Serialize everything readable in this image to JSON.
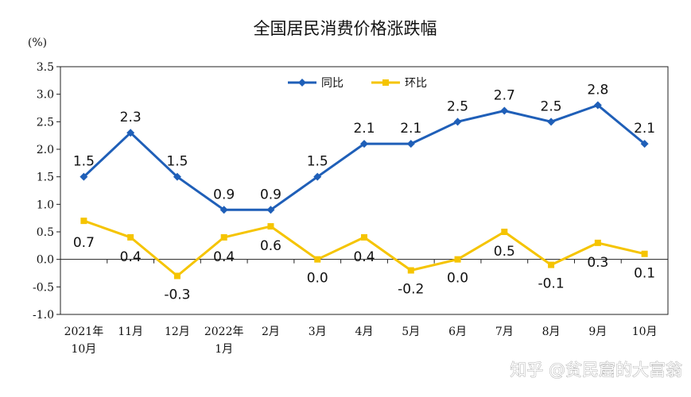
{
  "chart_data": {
    "type": "line",
    "title": "全国居民消费价格涨跌幅",
    "ylabel": "(%)",
    "ylim": [
      -1.0,
      3.5
    ],
    "yticks": [
      "3.5",
      "3.0",
      "2.5",
      "2.0",
      "1.5",
      "1.0",
      "0.5",
      "0.0",
      "-0.5",
      "-1.0"
    ],
    "categories": [
      [
        "2021年",
        "10月"
      ],
      [
        "11月"
      ],
      [
        "12月"
      ],
      [
        "2022年",
        "1月"
      ],
      [
        "2月"
      ],
      [
        "3月"
      ],
      [
        "4月"
      ],
      [
        "5月"
      ],
      [
        "6月"
      ],
      [
        "7月"
      ],
      [
        "8月"
      ],
      [
        "9月"
      ],
      [
        "10月"
      ]
    ],
    "legend_position": "top-center",
    "series": [
      {
        "name": "同比",
        "color": "#1f5fb8",
        "values": [
          1.5,
          2.3,
          1.5,
          0.9,
          0.9,
          1.5,
          2.1,
          2.1,
          2.5,
          2.7,
          2.5,
          2.8,
          2.1
        ],
        "labels": [
          "1.5",
          "2.3",
          "1.5",
          "0.9",
          "0.9",
          "1.5",
          "2.1",
          "2.1",
          "2.5",
          "2.7",
          "2.5",
          "2.8",
          "2.1"
        ]
      },
      {
        "name": "环比",
        "color": "#f5c400",
        "values": [
          0.7,
          0.4,
          -0.3,
          0.4,
          0.6,
          0.0,
          0.4,
          -0.2,
          0.0,
          0.5,
          -0.1,
          0.3,
          0.1
        ],
        "labels": [
          "0.7",
          "0.4",
          "-0.3",
          "0.4",
          "0.6",
          "0.0",
          "0.4",
          "-0.2",
          "0.0",
          "0.5",
          "-0.1",
          "0.3",
          "0.1"
        ]
      }
    ]
  },
  "watermark": "知乎 @贫民窟的大富翁"
}
